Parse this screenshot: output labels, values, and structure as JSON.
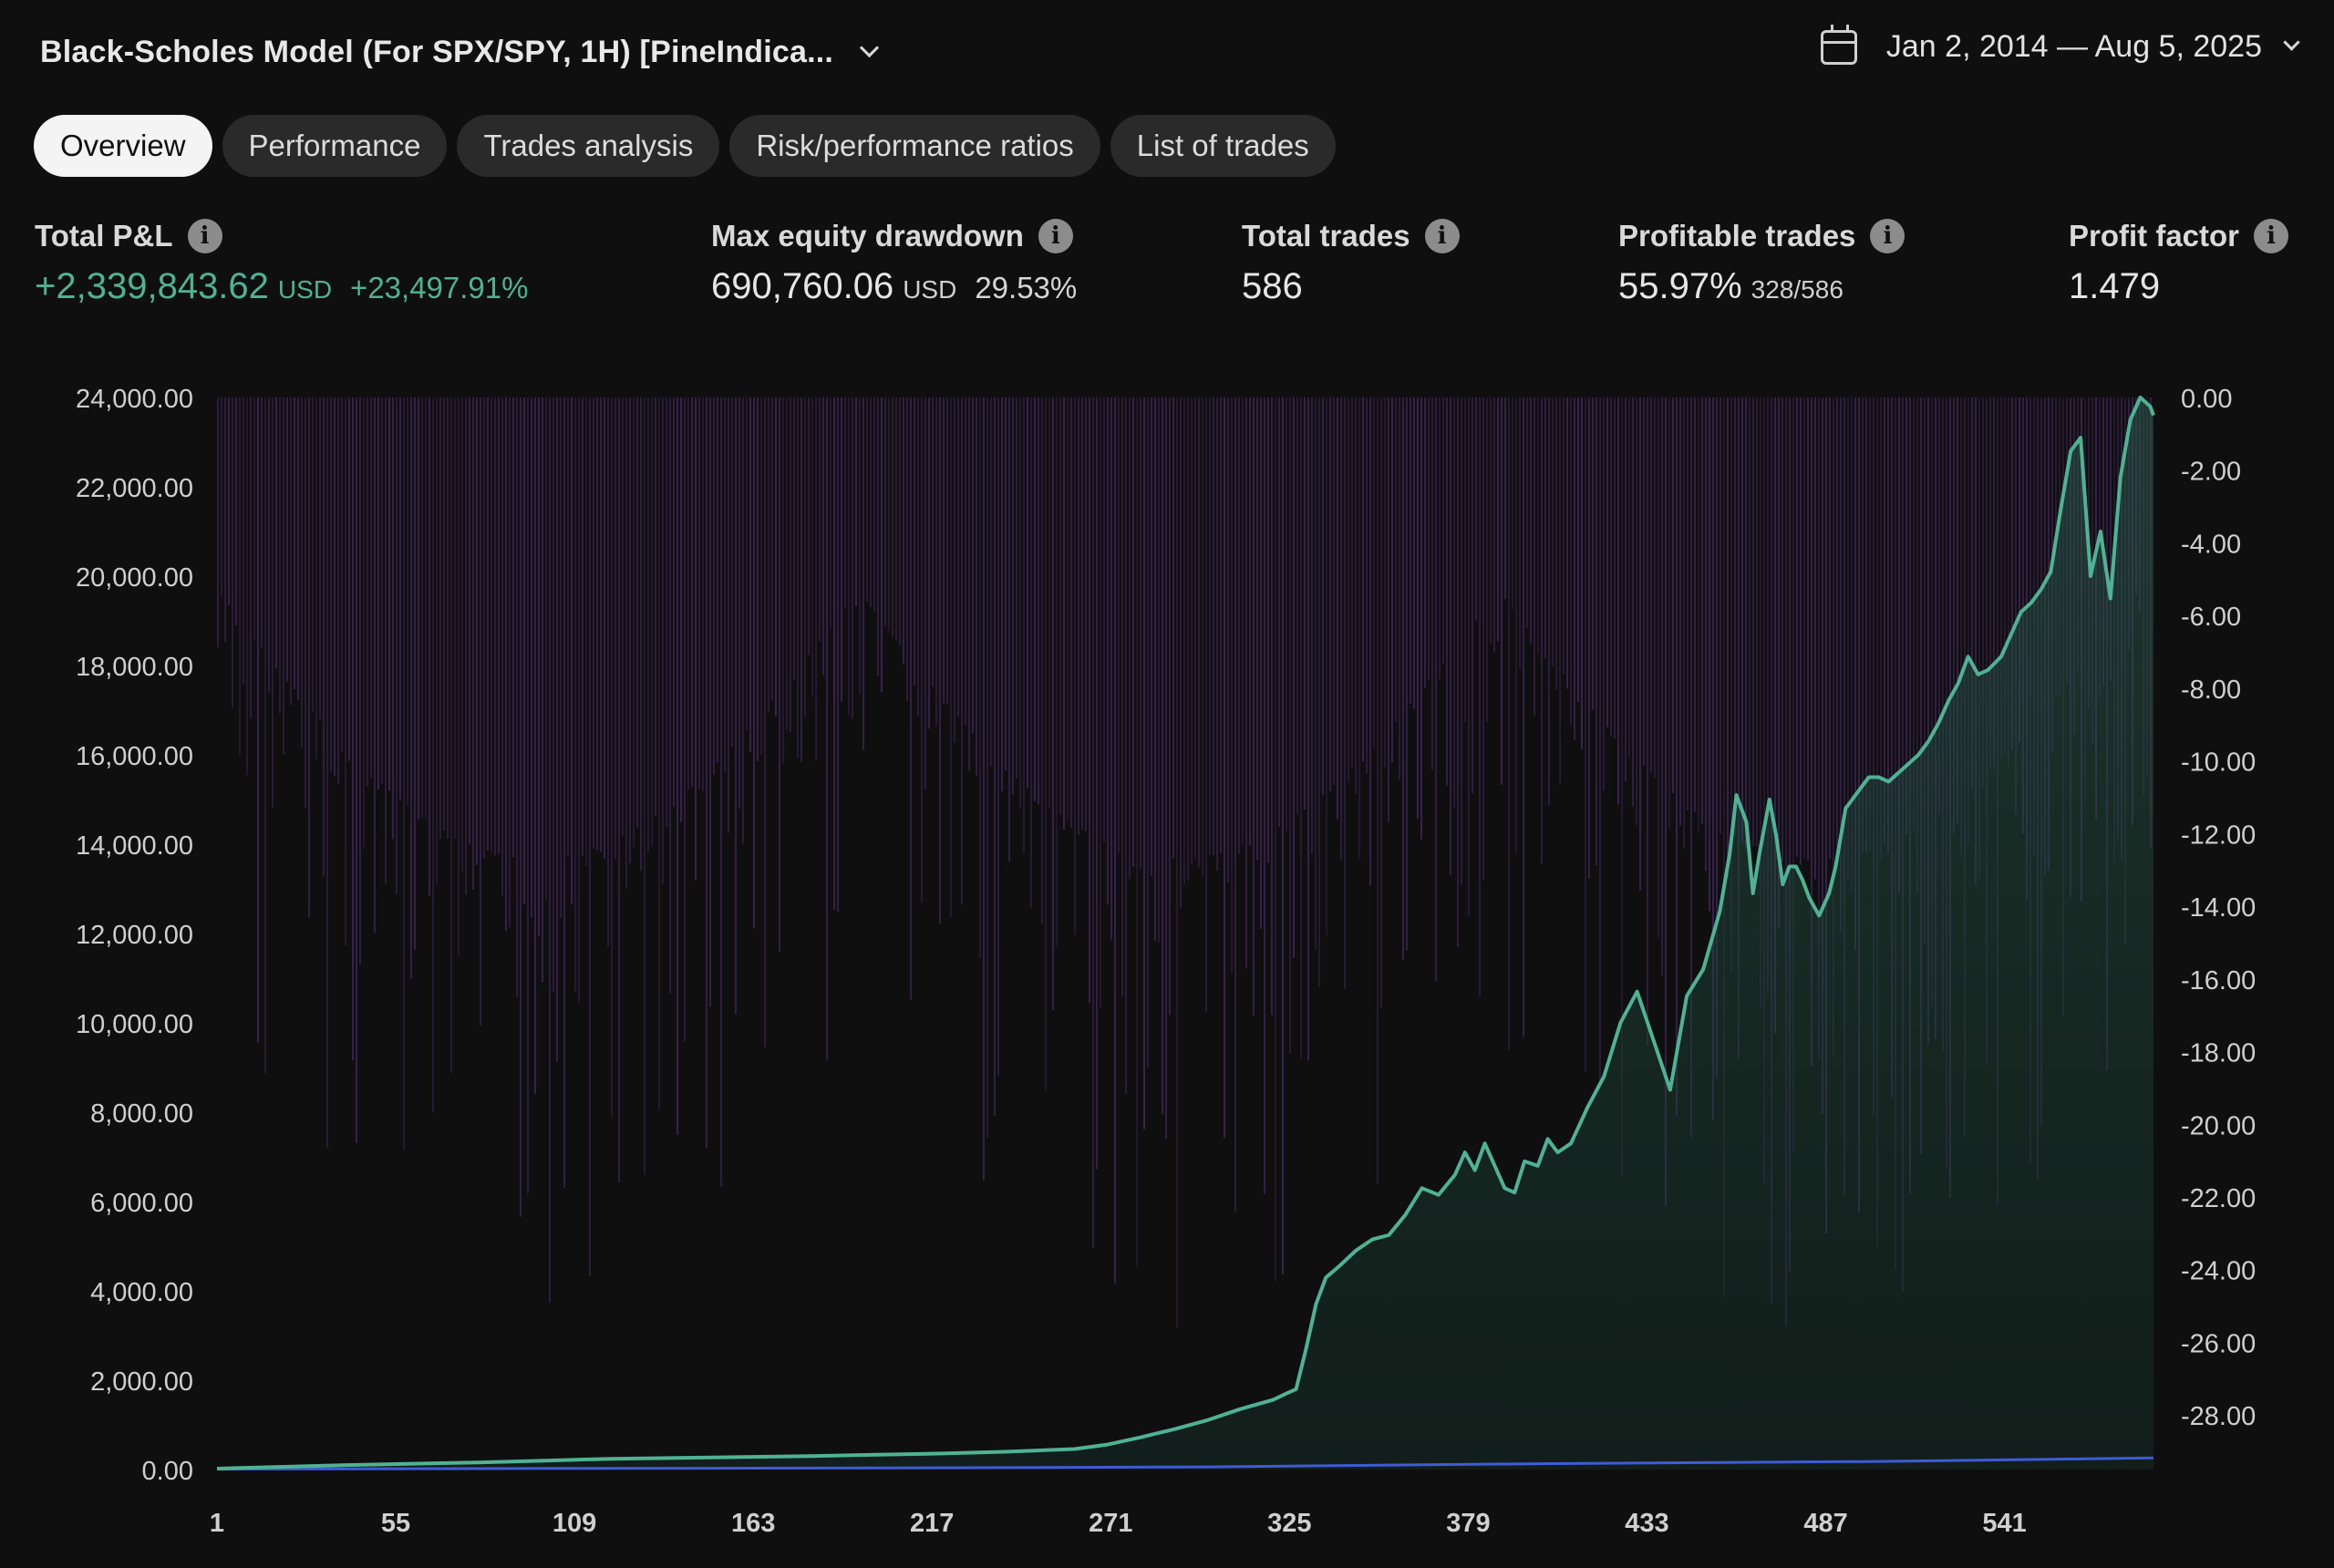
{
  "header": {
    "strategy_title": "Black-Scholes Model (For SPX/SPY, 1H) [PineIndica...",
    "date_range": "Jan 2, 2014 — Aug 5, 2025"
  },
  "tabs": [
    {
      "label": "Overview",
      "active": true
    },
    {
      "label": "Performance",
      "active": false
    },
    {
      "label": "Trades analysis",
      "active": false
    },
    {
      "label": "Risk/performance ratios",
      "active": false
    },
    {
      "label": "List of trades",
      "active": false
    }
  ],
  "metrics": {
    "total_pnl": {
      "label": "Total P&L",
      "value": "+2,339,843.62",
      "currency": "USD",
      "percent": "+23,497.91%"
    },
    "max_drawdown": {
      "label": "Max equity drawdown",
      "value": "690,760.06",
      "currency": "USD",
      "percent": "29.53%"
    },
    "total_trades": {
      "label": "Total trades",
      "value": "586"
    },
    "profitable_trades": {
      "label": "Profitable trades",
      "value": "55.97%",
      "detail": "328/586"
    },
    "profit_factor": {
      "label": "Profit factor",
      "value": "1.479"
    }
  },
  "colors": {
    "equity": "#4fb393",
    "buy_hold": "#3f5bd8",
    "drawdown": "#7a3fb0",
    "accent": "#4fb393"
  },
  "chart_data": {
    "type": "line",
    "left_axis_ticks": [
      "24,000.00",
      "22,000.00",
      "20,000.00",
      "18,000.00",
      "16,000.00",
      "14,000.00",
      "12,000.00",
      "10,000.00",
      "8,000.00",
      "6,000.00",
      "4,000.00",
      "2,000.00",
      "0.00"
    ],
    "right_axis_ticks": [
      "0.00",
      "-2.00",
      "-4.00",
      "-6.00",
      "-8.00",
      "-10.00",
      "-12.00",
      "-14.00",
      "-16.00",
      "-18.00",
      "-20.00",
      "-22.00",
      "-24.00",
      "-26.00",
      "-28.00"
    ],
    "x_ticks": [
      "1",
      "55",
      "109",
      "163",
      "217",
      "271",
      "325",
      "379",
      "433",
      "487",
      "541"
    ],
    "ylim_left": [
      0,
      24000
    ],
    "ylim_right": [
      -29.5,
      0
    ],
    "xlim": [
      1,
      586
    ],
    "series": [
      {
        "kind": "equity",
        "x": [
          1,
          20,
          40,
          60,
          80,
          100,
          120,
          140,
          160,
          180,
          200,
          220,
          240,
          260,
          270,
          280,
          290,
          300,
          310,
          320,
          324,
          327,
          330,
          333,
          336,
          340,
          345,
          350,
          355,
          360,
          365,
          370,
          375,
          378,
          381,
          384,
          387,
          390,
          393,
          396,
          400,
          403,
          406,
          410,
          415,
          420,
          425,
          430,
          435,
          440,
          445,
          450,
          455,
          458,
          460,
          463,
          465,
          467,
          470,
          472,
          474,
          476,
          478,
          480,
          482,
          485,
          488,
          490,
          493,
          496,
          500,
          503,
          506,
          509,
          512,
          515,
          518,
          521,
          524,
          527,
          530,
          533,
          536,
          540,
          543,
          546,
          549,
          552,
          555,
          558,
          561,
          564,
          567,
          570,
          573,
          576,
          579,
          582,
          585,
          586
        ],
        "y": [
          20,
          60,
          100,
          130,
          160,
          200,
          240,
          260,
          280,
          300,
          330,
          360,
          400,
          460,
          560,
          720,
          900,
          1100,
          1350,
          1560,
          1700,
          1800,
          2700,
          3700,
          4300,
          4550,
          4900,
          5150,
          5250,
          5700,
          6300,
          6150,
          6600,
          7100,
          6700,
          7300,
          6800,
          6300,
          6200,
          6900,
          6800,
          7400,
          7100,
          7300,
          8100,
          8800,
          10000,
          10700,
          9600,
          8500,
          10600,
          11200,
          12500,
          13800,
          15100,
          14500,
          12900,
          13800,
          15000,
          14200,
          13100,
          13500,
          13500,
          13200,
          12800,
          12400,
          12900,
          13500,
          14800,
          15100,
          15500,
          15500,
          15400,
          15600,
          15800,
          16000,
          16300,
          16700,
          17200,
          17600,
          18200,
          17800,
          17900,
          18200,
          18700,
          19200,
          19400,
          19700,
          20100,
          21500,
          22800,
          23100,
          20000,
          21000,
          19500,
          22200,
          23500,
          24000,
          23800,
          23600
        ]
      },
      {
        "kind": "buy_hold",
        "x": [
          1,
          100,
          200,
          300,
          400,
          500,
          586
        ],
        "y": [
          10,
          25,
          35,
          60,
          130,
          180,
          260
        ]
      }
    ]
  }
}
